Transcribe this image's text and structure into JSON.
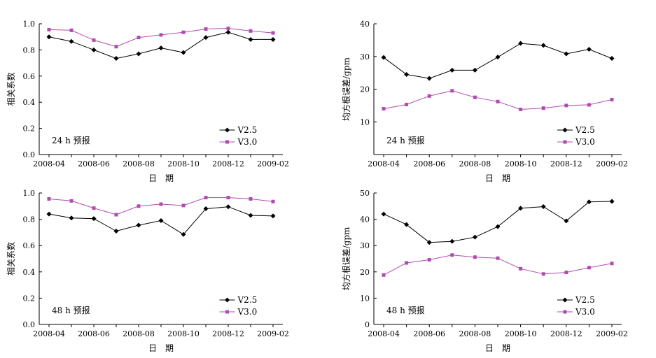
{
  "colors": {
    "v25": "#000000",
    "v30": "#b04cb0"
  },
  "chart_data": [
    {
      "type": "line",
      "title": "",
      "annotation": "24 h 预报",
      "xlabel": "日　期",
      "ylabel": "相关系数",
      "ylim": [
        0,
        1.0
      ],
      "yticks": [
        "0.0",
        "0.2",
        "0.4",
        "0.6",
        "0.8",
        "1.0"
      ],
      "ytick_values": [
        0,
        0.2,
        0.4,
        0.6,
        0.8,
        1.0
      ],
      "x": [
        "2008-04",
        "2008-05",
        "2008-06",
        "2008-07",
        "2008-08",
        "2008-09",
        "2008-10",
        "2008-11",
        "2008-12",
        "2009-01",
        "2009-02"
      ],
      "xtick_labels": [
        "2008-04",
        "2008-06",
        "2008-08",
        "2008-10",
        "2008-12",
        "2009-02"
      ],
      "legend": "bottom-right",
      "series": [
        {
          "name": "V2.5",
          "marker": "diamond",
          "values": [
            0.9,
            0.865,
            0.8,
            0.735,
            0.77,
            0.815,
            0.78,
            0.895,
            0.935,
            0.88,
            0.88
          ]
        },
        {
          "name": "V3.0",
          "marker": "square",
          "values": [
            0.955,
            0.95,
            0.875,
            0.825,
            0.895,
            0.915,
            0.935,
            0.96,
            0.965,
            0.945,
            0.93
          ]
        }
      ]
    },
    {
      "type": "line",
      "title": "",
      "annotation": "24 h 预报",
      "xlabel": "日　期",
      "ylabel": "均方根误差/gpm",
      "ylim": [
        0,
        40
      ],
      "yticks": [
        "10",
        "20",
        "30",
        "40"
      ],
      "ytick_values": [
        10,
        20,
        30,
        40
      ],
      "x": [
        "2008-04",
        "2008-05",
        "2008-06",
        "2008-07",
        "2008-08",
        "2008-09",
        "2008-10",
        "2008-11",
        "2008-12",
        "2009-01",
        "2009-02"
      ],
      "xtick_labels": [
        "2008-04",
        "2008-06",
        "2008-08",
        "2008-10",
        "2008-12",
        "2009-02"
      ],
      "legend": "bottom-right",
      "series": [
        {
          "name": "V2.5",
          "marker": "diamond",
          "values": [
            29.7,
            24.5,
            23.3,
            25.8,
            25.8,
            29.8,
            34.0,
            33.4,
            30.8,
            32.2,
            29.4
          ]
        },
        {
          "name": "V3.0",
          "marker": "square",
          "values": [
            14.0,
            15.3,
            17.9,
            19.5,
            17.5,
            16.2,
            13.8,
            14.2,
            15.0,
            15.2,
            16.8
          ]
        }
      ]
    },
    {
      "type": "line",
      "title": "",
      "annotation": "48 h 预报",
      "xlabel": "日　期",
      "ylabel": "相关系数",
      "ylim": [
        0,
        1.0
      ],
      "yticks": [
        "0.0",
        "0.2",
        "0.4",
        "0.6",
        "0.8",
        "1.0"
      ],
      "ytick_values": [
        0,
        0.2,
        0.4,
        0.6,
        0.8,
        1.0
      ],
      "x": [
        "2008-04",
        "2008-05",
        "2008-06",
        "2008-07",
        "2008-08",
        "2008-09",
        "2008-10",
        "2008-11",
        "2008-12",
        "2009-01",
        "2009-02"
      ],
      "xtick_labels": [
        "2008-04",
        "2008-06",
        "2008-08",
        "2008-10",
        "2008-12",
        "2009-02"
      ],
      "legend": "bottom-right",
      "series": [
        {
          "name": "V2.5",
          "marker": "diamond",
          "values": [
            0.84,
            0.81,
            0.805,
            0.71,
            0.755,
            0.79,
            0.685,
            0.88,
            0.895,
            0.83,
            0.825
          ]
        },
        {
          "name": "V3.0",
          "marker": "square",
          "values": [
            0.955,
            0.94,
            0.885,
            0.835,
            0.9,
            0.915,
            0.905,
            0.965,
            0.965,
            0.955,
            0.935
          ]
        }
      ]
    },
    {
      "type": "line",
      "title": "",
      "annotation": "48 h 预报",
      "xlabel": "日　期",
      "ylabel": "均方根误差/gpm",
      "ylim": [
        0,
        50
      ],
      "yticks": [
        "0",
        "10",
        "20",
        "30",
        "40",
        "50"
      ],
      "ytick_values": [
        0,
        10,
        20,
        30,
        40,
        50
      ],
      "x": [
        "2008-04",
        "2008-05",
        "2008-06",
        "2008-07",
        "2008-08",
        "2008-09",
        "2008-10",
        "2008-11",
        "2008-12",
        "2009-01",
        "2009-02"
      ],
      "xtick_labels": [
        "2008-04",
        "2008-06",
        "2008-08",
        "2008-10",
        "2008-12",
        "2009-02"
      ],
      "legend": "bottom-right",
      "series": [
        {
          "name": "V2.5",
          "marker": "diamond",
          "values": [
            42.0,
            38.0,
            31.2,
            31.6,
            33.2,
            37.2,
            44.2,
            44.8,
            39.4,
            46.6,
            46.8
          ]
        },
        {
          "name": "V3.0",
          "marker": "square",
          "values": [
            18.8,
            23.4,
            24.6,
            26.4,
            25.6,
            25.2,
            21.2,
            19.2,
            19.8,
            21.6,
            23.2
          ]
        }
      ]
    }
  ]
}
